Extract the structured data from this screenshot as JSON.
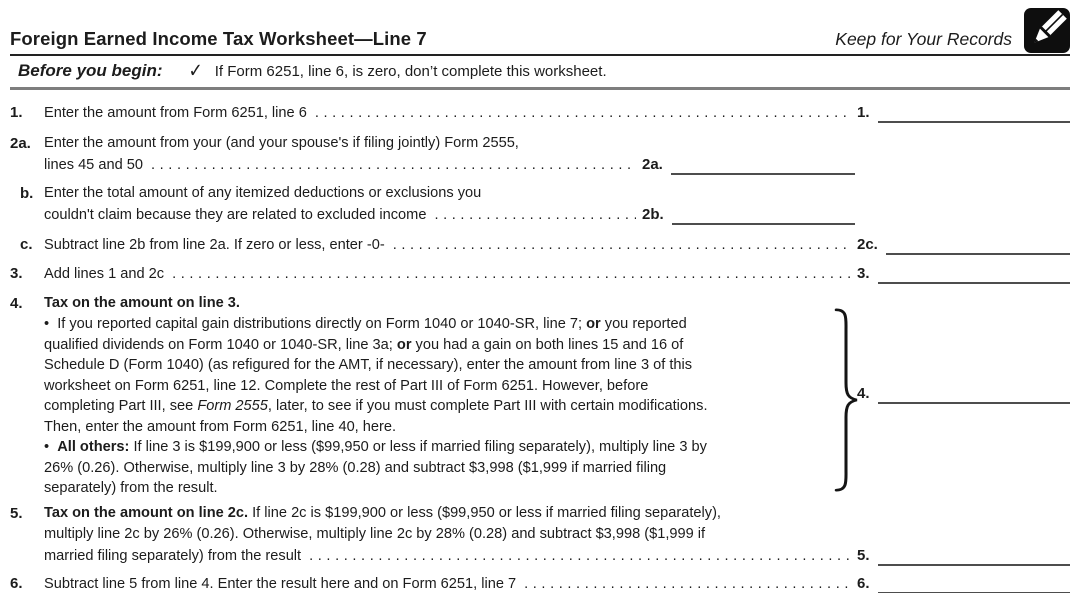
{
  "header": {
    "title": "Foreign Earned Income Tax Worksheet—Line 7",
    "keep_label": "Keep for Your Records"
  },
  "icons": {
    "pencil": "pencil-icon",
    "check_glyph": "✓"
  },
  "before": {
    "label": "Before you begin:",
    "text": "If Form 6251, line 6, is zero, don’t complete this worksheet."
  },
  "lines": {
    "l1": {
      "num": "1.",
      "text": "Enter the amount from Form 6251, line 6",
      "entry": {
        "label": "1.",
        "value": ""
      }
    },
    "l2a": {
      "num": "2a.",
      "line1": "Enter the amount from your (and your spouse's if filing jointly) Form 2555,",
      "line2": "lines 45 and 50",
      "entry": {
        "label": "2a.",
        "value": ""
      }
    },
    "l2b": {
      "num": "b.",
      "line1": "Enter the total amount of any itemized deductions or exclusions you",
      "line2": "couldn't claim because they are related to excluded income",
      "entry": {
        "label": "2b.",
        "value": ""
      }
    },
    "l2c": {
      "num": "c.",
      "text": "Subtract line 2b from line 2a. If zero or less, enter -0-",
      "entry": {
        "label": "2c.",
        "value": ""
      }
    },
    "l3": {
      "num": "3.",
      "text": "Add lines 1 and 2c",
      "entry": {
        "label": "3.",
        "value": ""
      }
    },
    "l4": {
      "num": "4.",
      "heading": "Tax on the amount on line 3.",
      "bullet1_lines": [
        [
          {
            "t": "•  If you reported capital gain distributions directly on Form 1040 or 1040-SR, line 7; "
          },
          {
            "t": "or",
            "b": true
          },
          {
            "t": " you reported"
          }
        ],
        [
          {
            "t": "qualified dividends on Form 1040 or 1040-SR, line 3a; "
          },
          {
            "t": "or",
            "b": true
          },
          {
            "t": " you had a gain on both lines 15 and 16 of"
          }
        ],
        [
          {
            "t": "Schedule D (Form 1040) (as refigured for the AMT, if necessary), enter the amount from line 3 of this"
          }
        ],
        [
          {
            "t": "worksheet on Form 6251, line 12. Complete the rest of Part III of Form 6251. However, before"
          }
        ],
        [
          {
            "t": "completing Part III, see "
          },
          {
            "t": "Form 2555",
            "i": true
          },
          {
            "t": ", later, to see if you must complete Part III with certain modifications."
          }
        ],
        [
          {
            "t": "Then, enter the amount from Form 6251, line 40, here."
          }
        ]
      ],
      "bullet2_lines": [
        [
          {
            "t": "•  "
          },
          {
            "t": "All others:",
            "b": true
          },
          {
            "t": " If line 3 is $199,900 or less ($99,950 or less if married filing separately), multiply line 3 by"
          }
        ],
        [
          {
            "t": "26% (0.26). Otherwise, multiply line 3 by 28% (0.28) and subtract $3,998 ($1,999 if married filing"
          }
        ],
        [
          {
            "t": "separately) from the result."
          }
        ]
      ],
      "entry": {
        "label": "4.",
        "value": ""
      }
    },
    "l5": {
      "num": "5.",
      "lines": [
        [
          {
            "t": "Tax on the amount on line 2c.",
            "b": true
          },
          {
            "t": " If line 2c is $199,900 or less ($99,950 or less if married filing separately),"
          }
        ],
        [
          {
            "t": "multiply line 2c by 26% (0.26). Otherwise, multiply line 2c by 28% (0.28) and subtract $3,998 ($1,999 if"
          }
        ]
      ],
      "lastline": [
        {
          "t": "married filing separately) from the result"
        }
      ],
      "entry": {
        "label": "5.",
        "value": ""
      }
    },
    "l6": {
      "num": "6.",
      "text": "Subtract line 5 from line 4. Enter the result here and on Form 6251, line 7",
      "entry": {
        "label": "6.",
        "value": ""
      }
    }
  }
}
